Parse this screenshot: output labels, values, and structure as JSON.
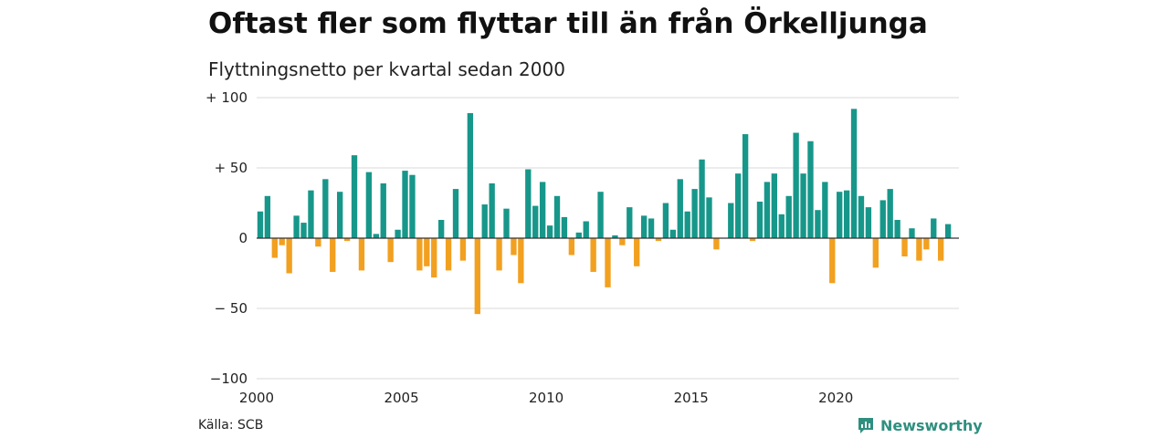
{
  "header": {
    "title": "Oftast fler som flyttar till än från Örkelljunga",
    "subtitle": "Flyttningsnetto per kvartal sedan 2000"
  },
  "footer": {
    "source": "Källa: SCB",
    "brand": "Newsworthy"
  },
  "colors": {
    "positive": "#17978a",
    "negative": "#f2a020",
    "grid": "#d9d9d9",
    "brand": "#2f8f7f"
  },
  "chart_data": {
    "type": "bar",
    "ylim": [
      -100,
      100
    ],
    "yticks": [
      100,
      50,
      0,
      -50,
      -100
    ],
    "ytick_labels": [
      "+ 100",
      "+  50",
      "0",
      "− 50",
      "−100"
    ],
    "xticks": [
      2000,
      2005,
      2010,
      2015,
      2020
    ],
    "xlim": [
      2000,
      2024.25
    ],
    "grid": true,
    "x": [
      2000.0,
      2000.25,
      2000.5,
      2000.75,
      2001.0,
      2001.25,
      2001.5,
      2001.75,
      2002.0,
      2002.25,
      2002.5,
      2002.75,
      2003.0,
      2003.25,
      2003.5,
      2003.75,
      2004.0,
      2004.25,
      2004.5,
      2004.75,
      2005.0,
      2005.25,
      2005.5,
      2005.75,
      2006.0,
      2006.25,
      2006.5,
      2006.75,
      2007.0,
      2007.25,
      2007.5,
      2007.75,
      2008.0,
      2008.25,
      2008.5,
      2008.75,
      2009.0,
      2009.25,
      2009.5,
      2009.75,
      2010.0,
      2010.25,
      2010.5,
      2010.75,
      2011.0,
      2011.25,
      2011.5,
      2011.75,
      2012.0,
      2012.25,
      2012.5,
      2012.75,
      2013.0,
      2013.25,
      2013.5,
      2013.75,
      2014.0,
      2014.25,
      2014.5,
      2014.75,
      2015.0,
      2015.25,
      2015.5,
      2015.75,
      2016.0,
      2016.25,
      2016.5,
      2016.75,
      2017.0,
      2017.25,
      2017.5,
      2017.75,
      2018.0,
      2018.25,
      2018.5,
      2018.75,
      2019.0,
      2019.25,
      2019.5,
      2019.75,
      2020.0,
      2020.25,
      2020.5,
      2020.75,
      2021.0,
      2021.25,
      2021.5,
      2021.75,
      2022.0,
      2022.25,
      2022.5,
      2022.75,
      2023.0,
      2023.25,
      2023.5,
      2023.75
    ],
    "values": [
      19,
      30,
      -14,
      -5,
      -25,
      16,
      11,
      34,
      -6,
      42,
      -24,
      33,
      -2,
      59,
      -23,
      47,
      3,
      39,
      -17,
      6,
      48,
      45,
      -23,
      -20,
      -28,
      13,
      -23,
      35,
      -16,
      89,
      -54,
      24,
      39,
      -23,
      21,
      -12,
      -32,
      49,
      23,
      40,
      9,
      30,
      15,
      -12,
      4,
      12,
      -24,
      33,
      -35,
      2,
      -5,
      22,
      -20,
      16,
      14,
      -2,
      25,
      6,
      42,
      19,
      35,
      56,
      29,
      -8,
      0,
      25,
      46,
      74,
      -2,
      26,
      40,
      46,
      17,
      30,
      75,
      46,
      69,
      20,
      40,
      -32,
      33,
      34,
      92,
      30,
      22,
      -21,
      27,
      35,
      13,
      -13,
      7,
      -16,
      -8,
      14,
      -16,
      10
    ]
  }
}
